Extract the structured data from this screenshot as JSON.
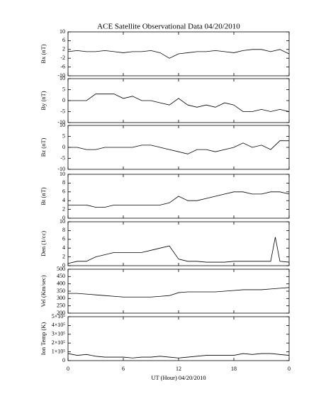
{
  "chart_data": [
    {
      "type": "line",
      "title": "ACE Satellite Observational Data   04/20/2010",
      "ylabel": "Bx (nT)",
      "xlim": [
        0,
        24
      ],
      "ylim": [
        -10,
        10
      ],
      "yticks": [
        -10,
        -6,
        -2,
        2,
        6,
        10
      ],
      "series": [
        {
          "color": "#000000",
          "x": [
            0,
            1,
            2,
            3,
            4,
            5,
            6,
            7,
            8,
            9,
            10,
            11,
            12,
            13,
            14,
            15,
            16,
            17,
            18,
            19,
            20,
            21,
            22,
            23,
            24
          ],
          "values": [
            1,
            1.5,
            1,
            1,
            1.5,
            1,
            0.5,
            1,
            1,
            1.5,
            0.5,
            -2,
            0,
            0.5,
            1,
            1,
            1.5,
            1,
            0.5,
            1.5,
            2,
            2,
            1,
            2,
            0
          ]
        }
      ]
    },
    {
      "type": "line",
      "ylabel": "By (nT)",
      "xlim": [
        0,
        24
      ],
      "ylim": [
        -10,
        10
      ],
      "yticks": [
        -10,
        -5,
        0,
        5,
        10
      ],
      "series": [
        {
          "color": "#000000",
          "x": [
            0,
            1,
            2,
            3,
            4,
            5,
            6,
            7,
            8,
            9,
            10,
            11,
            12,
            13,
            14,
            15,
            16,
            17,
            18,
            19,
            20,
            21,
            22,
            23,
            24
          ],
          "values": [
            0,
            0,
            0,
            3,
            3,
            3,
            1,
            2,
            0,
            0,
            -1,
            -2,
            1,
            -2,
            -3,
            -2,
            -3,
            -1,
            -2,
            -5,
            -5,
            -4,
            -5,
            -4,
            -5
          ]
        }
      ]
    },
    {
      "type": "line",
      "ylabel": "Bz (nT)",
      "xlim": [
        0,
        24
      ],
      "ylim": [
        -10,
        10
      ],
      "yticks": [
        -10,
        -5,
        0,
        5,
        10
      ],
      "series": [
        {
          "color": "#000000",
          "x": [
            0,
            1,
            2,
            3,
            4,
            5,
            6,
            7,
            8,
            9,
            10,
            11,
            12,
            13,
            14,
            15,
            16,
            17,
            18,
            19,
            20,
            21,
            22,
            23,
            24
          ],
          "values": [
            0,
            0,
            -1,
            -1,
            0,
            0,
            0,
            0,
            1,
            1,
            0,
            -1,
            -2,
            -3,
            -1,
            -1,
            -2,
            -1,
            0,
            2,
            0,
            1,
            -1,
            3,
            3
          ]
        }
      ]
    },
    {
      "type": "line",
      "ylabel": "Bt (nT)",
      "xlim": [
        0,
        24
      ],
      "ylim": [
        0,
        10
      ],
      "yticks": [
        0,
        2,
        4,
        6,
        8,
        10
      ],
      "series": [
        {
          "color": "#000000",
          "x": [
            0,
            1,
            2,
            3,
            4,
            5,
            6,
            7,
            8,
            9,
            10,
            11,
            12,
            13,
            14,
            15,
            16,
            17,
            18,
            19,
            20,
            21,
            22,
            23,
            24
          ],
          "values": [
            3,
            3,
            3,
            2.5,
            2.5,
            3,
            3,
            3,
            3,
            3,
            3,
            3.5,
            5,
            4,
            4,
            4.5,
            5,
            5.5,
            6,
            6,
            5.5,
            5.5,
            6,
            6,
            5.5
          ]
        }
      ]
    },
    {
      "type": "line",
      "ylabel": "Den (1/cc)",
      "xlim": [
        0,
        24
      ],
      "ylim": [
        0,
        10
      ],
      "yticks": [
        0,
        2,
        4,
        6,
        8,
        10
      ],
      "series": [
        {
          "color": "#000000",
          "x": [
            0,
            1,
            2,
            3,
            4,
            5,
            6,
            7,
            8,
            9,
            10,
            11,
            12,
            13,
            14,
            15,
            16,
            17,
            18,
            19,
            20,
            21,
            22,
            22.5,
            23,
            24
          ],
          "values": [
            0.5,
            1,
            1,
            2,
            2.5,
            3,
            3,
            3,
            3,
            3.5,
            4,
            4.5,
            1.5,
            1,
            1,
            0.8,
            0.8,
            0.8,
            1,
            1,
            1,
            1,
            1,
            6.5,
            1,
            0.8
          ]
        }
      ]
    },
    {
      "type": "line",
      "ylabel": "Vel (Km/sec)",
      "xlim": [
        0,
        24
      ],
      "ylim": [
        200,
        500
      ],
      "yticks": [
        200,
        250,
        300,
        350,
        400,
        450,
        500
      ],
      "series": [
        {
          "color": "#000000",
          "x": [
            0,
            1,
            2,
            3,
            4,
            5,
            6,
            7,
            8,
            9,
            10,
            11,
            12,
            13,
            14,
            15,
            16,
            17,
            18,
            19,
            20,
            21,
            22,
            23,
            24
          ],
          "values": [
            335,
            335,
            330,
            325,
            320,
            315,
            310,
            310,
            310,
            310,
            315,
            320,
            340,
            345,
            345,
            345,
            345,
            350,
            355,
            360,
            360,
            360,
            365,
            370,
            375
          ]
        }
      ]
    },
    {
      "type": "line",
      "ylabel": "Ion Temp (K)",
      "xlabel": "UT (Hour)   04/20/2010",
      "xlim": [
        0,
        24
      ],
      "xticks": [
        0,
        6,
        12,
        18,
        {
          "value": 24,
          "label": "0"
        }
      ],
      "ylim": [
        0,
        500000
      ],
      "yticks": [
        0,
        {
          "value": 100000,
          "label": "1×10⁵"
        },
        {
          "value": 200000,
          "label": "2×10⁵"
        },
        {
          "value": 300000,
          "label": "3×10⁵"
        },
        {
          "value": 400000,
          "label": "4×10⁵"
        },
        {
          "value": 500000,
          "label": "5×10⁵"
        }
      ],
      "series": [
        {
          "color": "#000000",
          "x": [
            0,
            1,
            2,
            3,
            4,
            5,
            6,
            7,
            8,
            9,
            10,
            11,
            12,
            13,
            14,
            15,
            16,
            17,
            18,
            19,
            20,
            21,
            22,
            23,
            24
          ],
          "values": [
            80000,
            60000,
            70000,
            50000,
            40000,
            40000,
            40000,
            30000,
            40000,
            40000,
            50000,
            40000,
            30000,
            40000,
            50000,
            60000,
            60000,
            60000,
            60000,
            80000,
            70000,
            80000,
            80000,
            70000,
            60000
          ]
        }
      ]
    }
  ]
}
